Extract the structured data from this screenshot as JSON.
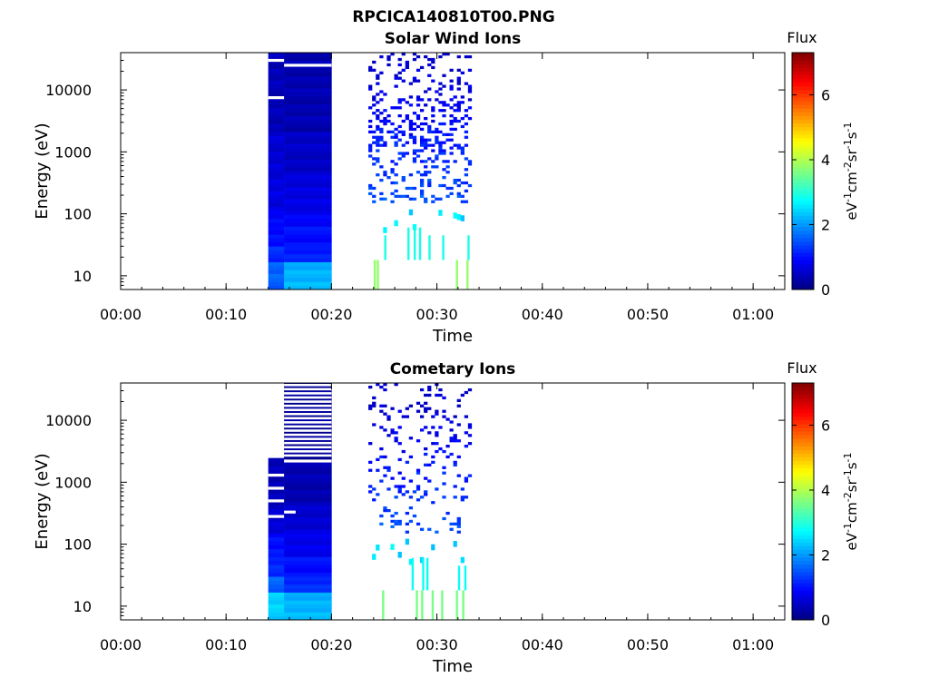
{
  "figure": {
    "title_line1": "RPCICA140810T00.PNG"
  },
  "chart_data": [
    {
      "type": "heatmap",
      "title": "Solar Wind Ions",
      "xlabel": "Time",
      "ylabel": "Energy (eV)",
      "y_scale": "log",
      "ylim": [
        6,
        40000
      ],
      "xlim_minutes": [
        0,
        63
      ],
      "x_ticks": [
        "00:00",
        "00:10",
        "00:20",
        "00:30",
        "00:40",
        "00:50",
        "01:00"
      ],
      "x_tick_minutes": [
        0,
        10,
        20,
        30,
        40,
        50,
        60
      ],
      "y_ticks": [
        "10",
        "100",
        "1000",
        "10000"
      ],
      "y_tick_values": [
        10,
        100,
        1000,
        10000
      ],
      "colorbar": {
        "title": "Flux",
        "label": "eV-1cm-2sr-1s-1",
        "range": [
          0,
          7.3
        ],
        "ticks": [
          "0",
          "2",
          "4",
          "6"
        ],
        "tick_values": [
          0,
          2,
          4,
          6
        ],
        "colormap": "jet"
      },
      "blocks": [
        {
          "t0": 14.0,
          "t1": 15.5,
          "profile": [
            [
              6,
              18,
              1.6
            ],
            [
              18,
              30,
              1.2
            ],
            [
              30,
              60,
              1.0
            ],
            [
              60,
              120,
              0.9
            ],
            [
              120,
              400,
              0.7
            ],
            [
              400,
              2000,
              0.6
            ],
            [
              2000,
              40000,
              0.4
            ]
          ]
        },
        {
          "t0": 15.5,
          "t1": 20.0,
          "profile": [
            [
              6,
              18,
              2.2
            ],
            [
              18,
              30,
              1.1
            ],
            [
              30,
              60,
              1.0
            ],
            [
              60,
              120,
              0.9
            ],
            [
              120,
              400,
              0.7
            ],
            [
              400,
              2000,
              0.5
            ],
            [
              2000,
              40000,
              0.35
            ]
          ]
        }
      ],
      "gaps": [
        {
          "t0": 14.0,
          "t1": 15.5,
          "e": 30000
        },
        {
          "t0": 14.0,
          "t1": 15.5,
          "e": 7500
        },
        {
          "t0": 15.5,
          "t1": 20.0,
          "e": 25000
        }
      ],
      "scatter": {
        "t0": 23.5,
        "t1": 33.2,
        "density_high": 0.55,
        "density_low": 0.3,
        "seed": 11
      },
      "lines": [
        {
          "t": 24.0,
          "e0": 6,
          "e1": 18,
          "flux": 3.8
        },
        {
          "t": 24.3,
          "e0": 6,
          "e1": 18,
          "flux": 3.8
        },
        {
          "t": 31.8,
          "e0": 6,
          "e1": 18,
          "flux": 3.8
        },
        {
          "t": 32.8,
          "e0": 6,
          "e1": 18,
          "flux": 3.8
        },
        {
          "t": 25.0,
          "e0": 18,
          "e1": 45,
          "flux": 2.9
        },
        {
          "t": 27.2,
          "e0": 18,
          "e1": 60,
          "flux": 2.9
        },
        {
          "t": 27.8,
          "e0": 18,
          "e1": 60,
          "flux": 2.9
        },
        {
          "t": 28.3,
          "e0": 18,
          "e1": 60,
          "flux": 2.9
        },
        {
          "t": 29.2,
          "e0": 18,
          "e1": 45,
          "flux": 2.9
        },
        {
          "t": 30.5,
          "e0": 18,
          "e1": 45,
          "flux": 2.9
        },
        {
          "t": 32.9,
          "e0": 18,
          "e1": 45,
          "flux": 2.9
        }
      ]
    },
    {
      "type": "heatmap",
      "title": "Cometary Ions",
      "xlabel": "Time",
      "ylabel": "Energy (eV)",
      "y_scale": "log",
      "ylim": [
        6,
        40000
      ],
      "xlim_minutes": [
        0,
        63
      ],
      "x_ticks": [
        "00:00",
        "00:10",
        "00:20",
        "00:30",
        "00:40",
        "00:50",
        "01:00"
      ],
      "x_tick_minutes": [
        0,
        10,
        20,
        30,
        40,
        50,
        60
      ],
      "y_ticks": [
        "10",
        "100",
        "1000",
        "10000"
      ],
      "y_tick_values": [
        10,
        100,
        1000,
        10000
      ],
      "colorbar": {
        "title": "Flux",
        "label": "eV-1cm-2sr-1s-1",
        "range": [
          0,
          7.3
        ],
        "ticks": [
          "0",
          "2",
          "4",
          "6"
        ],
        "tick_values": [
          0,
          2,
          4,
          6
        ],
        "colormap": "jet"
      },
      "blocks": [
        {
          "t0": 14.0,
          "t1": 15.5,
          "profile": [
            [
              6,
              16,
              2.4
            ],
            [
              16,
              30,
              1.6
            ],
            [
              30,
              60,
              1.2
            ],
            [
              60,
              150,
              1.0
            ],
            [
              150,
              400,
              0.6
            ],
            [
              400,
              2500,
              0.4
            ]
          ]
        },
        {
          "t0": 15.5,
          "t1": 20.0,
          "profile": [
            [
              6,
              16,
              2.2
            ],
            [
              16,
              30,
              1.2
            ],
            [
              30,
              60,
              1.0
            ],
            [
              60,
              150,
              0.8
            ],
            [
              150,
              400,
              0.6
            ],
            [
              400,
              2000,
              0.35
            ],
            [
              2000,
              40000,
              0.2
            ]
          ]
        }
      ],
      "gaps": [
        {
          "t0": 14.0,
          "t1": 15.5,
          "e": 1300
        },
        {
          "t0": 14.0,
          "t1": 15.5,
          "e": 800
        },
        {
          "t0": 14.0,
          "t1": 15.5,
          "e": 500
        },
        {
          "t0": 14.0,
          "t1": 15.5,
          "e": 280
        },
        {
          "t0": 15.5,
          "t1": 16.6,
          "e": 330
        },
        {
          "t0": 15.5,
          "t1": 20.0,
          "e": 2200
        }
      ],
      "gaps_striped": {
        "t0": 15.5,
        "t1": 20.0,
        "e_min": 2500,
        "e_max": 40000
      },
      "scatter": {
        "t0": 23.5,
        "t1": 33.2,
        "density_high": 0.22,
        "density_low": 0.25,
        "seed": 29
      },
      "lines": [
        {
          "t": 24.8,
          "e0": 6,
          "e1": 18,
          "flux": 3.6
        },
        {
          "t": 28.0,
          "e0": 6,
          "e1": 18,
          "flux": 3.6
        },
        {
          "t": 28.5,
          "e0": 6,
          "e1": 18,
          "flux": 3.6
        },
        {
          "t": 29.5,
          "e0": 6,
          "e1": 18,
          "flux": 3.6
        },
        {
          "t": 30.4,
          "e0": 6,
          "e1": 18,
          "flux": 3.6
        },
        {
          "t": 31.8,
          "e0": 6,
          "e1": 18,
          "flux": 3.6
        },
        {
          "t": 32.4,
          "e0": 6,
          "e1": 18,
          "flux": 3.6
        },
        {
          "t": 27.6,
          "e0": 18,
          "e1": 60,
          "flux": 2.8
        },
        {
          "t": 28.6,
          "e0": 18,
          "e1": 60,
          "flux": 2.8
        },
        {
          "t": 29.0,
          "e0": 18,
          "e1": 60,
          "flux": 2.8
        },
        {
          "t": 32.0,
          "e0": 18,
          "e1": 45,
          "flux": 2.8
        },
        {
          "t": 32.6,
          "e0": 18,
          "e1": 45,
          "flux": 2.8
        }
      ]
    }
  ]
}
